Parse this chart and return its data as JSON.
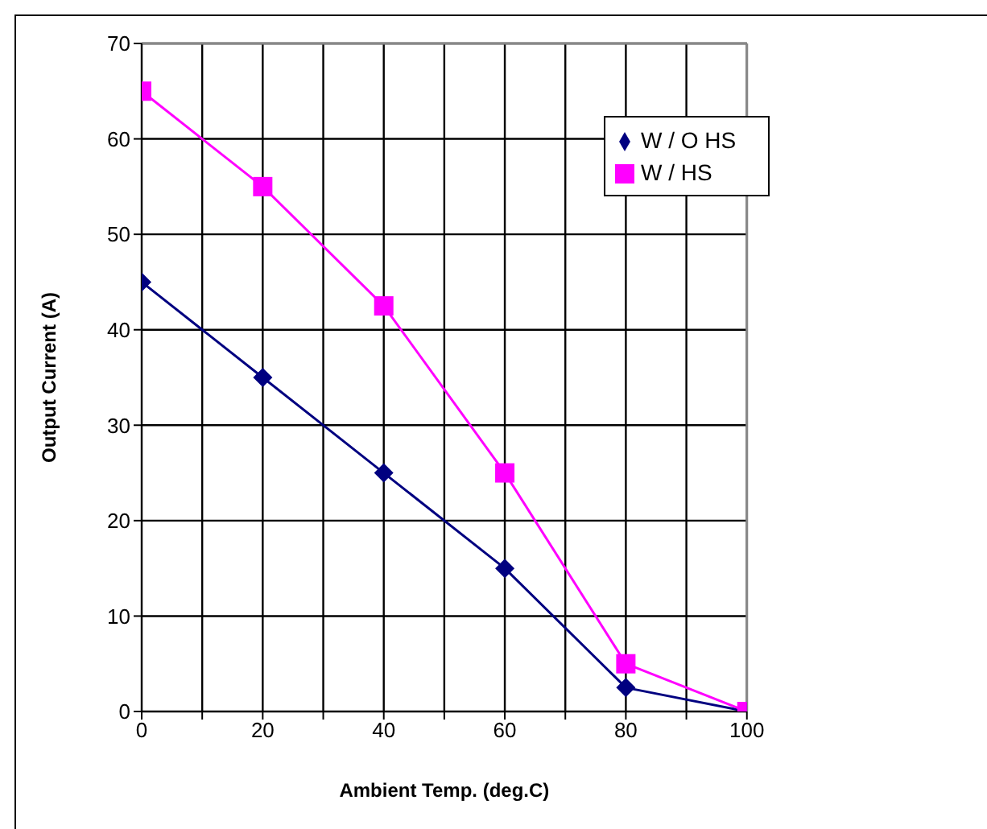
{
  "chart_data": {
    "type": "line",
    "xlabel": "Ambient Temp. (deg.C)",
    "ylabel": "Output Current (A)",
    "x": [
      0,
      20,
      40,
      60,
      80,
      100
    ],
    "series": [
      {
        "name": "W / O HS",
        "color": "#000080",
        "marker": "diamond",
        "values": [
          45,
          35,
          25,
          15,
          2.5,
          0
        ]
      },
      {
        "name": "W / HS",
        "color": "#ff00ff",
        "marker": "square",
        "values": [
          65,
          55,
          42.5,
          25,
          5,
          0
        ]
      }
    ],
    "xlim": [
      0,
      100
    ],
    "xticks": [
      0,
      {
        "value": 10,
        "label": null
      },
      20,
      {
        "value": 30,
        "label": null
      },
      40,
      {
        "value": 50,
        "label": null
      },
      60,
      {
        "value": 70,
        "label": null
      },
      80,
      {
        "value": 90,
        "label": null
      },
      100
    ],
    "ylim": [
      0,
      70
    ],
    "yticks": [
      0,
      10,
      20,
      30,
      40,
      50,
      60,
      70
    ],
    "grid": true,
    "legend": "top right",
    "line_style": "solid"
  }
}
